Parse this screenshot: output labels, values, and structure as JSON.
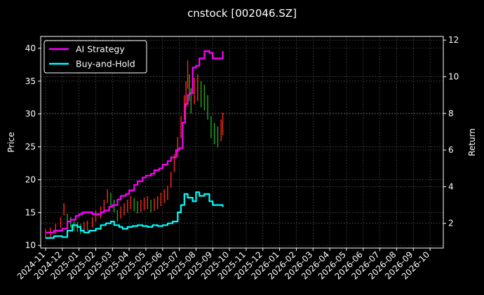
{
  "chart_data": {
    "type": "line",
    "title": "cnstock [002046.SZ]",
    "ylabel_left": "Price",
    "ylabel_right": "Return",
    "ylim_left": [
      9.6,
      41.8
    ],
    "ylim_right": [
      0.65,
      12.2
    ],
    "yticks_left": [
      10,
      15,
      20,
      25,
      30,
      35,
      40
    ],
    "yticks_right": [
      2,
      4,
      6,
      8,
      10,
      12
    ],
    "x_tick_labels": [
      "2024-11",
      "2024-12",
      "2025-01",
      "2025-02",
      "2025-03",
      "2025-04",
      "2025-05",
      "2025-06",
      "2025-07",
      "2025-08",
      "2025-09",
      "2025-10",
      "2025-11",
      "2025-12",
      "2026-01",
      "2026-02",
      "2026-03",
      "2026-04",
      "2026-05",
      "2026-06",
      "2026-07",
      "2026-08",
      "2026-09",
      "2026-10"
    ],
    "grid": true,
    "legend_position": "top-left",
    "colors": {
      "background": "#000000",
      "strategy": "#ff00ff",
      "buyhold": "#00ffff",
      "candle_up": "#ff2a1a",
      "candle_down": "#22aa22",
      "grid": "#555555"
    },
    "series": [
      {
        "name": "AI Strategy",
        "axis": "right",
        "x": [
          0,
          0.5,
          1,
          1.3,
          1.5,
          1.8,
          2,
          2.2,
          2.5,
          2.8,
          3,
          3.3,
          3.5,
          3.8,
          4,
          4.3,
          4.5,
          4.8,
          5,
          5.3,
          5.5,
          5.8,
          6,
          6.3,
          6.5,
          6.8,
          7,
          7.3,
          7.5,
          7.8,
          8,
          8.2,
          8.35,
          8.5,
          8.6,
          8.8,
          9,
          9.2,
          9.5,
          9.8,
          10,
          10.3,
          10.6
        ],
        "values": [
          1.5,
          1.6,
          1.7,
          2.1,
          2.2,
          2.4,
          2.5,
          2.6,
          2.6,
          2.5,
          2.5,
          2.6,
          2.7,
          2.9,
          3.0,
          3.3,
          3.5,
          3.6,
          3.8,
          4.1,
          4.3,
          4.5,
          4.6,
          4.7,
          4.9,
          5.0,
          5.2,
          5.4,
          5.6,
          6.0,
          6.1,
          7.5,
          8.5,
          9.0,
          9.1,
          10.5,
          10.6,
          11.0,
          11.4,
          11.3,
          11.0,
          11.0,
          11.4
        ]
      },
      {
        "name": "Buy-and-Hold",
        "axis": "right",
        "x": [
          0,
          0.5,
          1,
          1.3,
          1.6,
          1.9,
          2.1,
          2.3,
          2.6,
          3,
          3.3,
          3.6,
          3.9,
          4.1,
          4.4,
          4.6,
          4.9,
          5.2,
          5.5,
          5.8,
          6.1,
          6.4,
          6.7,
          7,
          7.3,
          7.6,
          7.9,
          8.1,
          8.3,
          8.5,
          8.8,
          9,
          9.2,
          9.5,
          9.8,
          10,
          10.3,
          10.6
        ],
        "values": [
          1.2,
          1.3,
          1.25,
          1.6,
          1.9,
          1.8,
          1.6,
          1.5,
          1.6,
          1.7,
          1.9,
          2.0,
          2.1,
          1.9,
          1.8,
          1.7,
          1.8,
          1.85,
          1.9,
          1.85,
          1.8,
          1.9,
          1.85,
          1.9,
          2.0,
          2.1,
          2.6,
          3.0,
          3.6,
          3.4,
          3.2,
          3.7,
          3.5,
          3.6,
          3.2,
          3.0,
          3.0,
          2.9
        ]
      },
      {
        "name": "Price",
        "axis": "left",
        "x": [
          0,
          0.3,
          0.6,
          0.9,
          1.1,
          1.3,
          1.5,
          1.7,
          1.9,
          2.1,
          2.3,
          2.5,
          2.8,
          3.0,
          3.3,
          3.5,
          3.7,
          3.9,
          4.1,
          4.3,
          4.5,
          4.7,
          4.9,
          5.1,
          5.3,
          5.5,
          5.7,
          5.9,
          6.1,
          6.3,
          6.5,
          6.7,
          6.9,
          7.1,
          7.3,
          7.5,
          7.7,
          7.9,
          8.1,
          8.3,
          8.4,
          8.5,
          8.6,
          8.7,
          8.9,
          9.1,
          9.3,
          9.5,
          9.7,
          9.9,
          10.1,
          10.3,
          10.5,
          10.6
        ],
        "values": [
          11.8,
          12.0,
          12.5,
          13.5,
          15.5,
          14.0,
          13.5,
          13.0,
          12.8,
          12.5,
          12.8,
          13.0,
          13.5,
          14.5,
          15.0,
          16.0,
          17.5,
          17.0,
          16.0,
          14.5,
          15.0,
          15.5,
          16.0,
          16.5,
          16.2,
          15.8,
          16.0,
          16.3,
          16.5,
          16.0,
          16.2,
          16.5,
          17.0,
          17.5,
          18.0,
          20.0,
          22.5,
          25.0,
          28.0,
          31.0,
          33.0,
          36.0,
          34.0,
          32.0,
          33.5,
          34.0,
          33.0,
          32.5,
          31.0,
          28.0,
          27.0,
          26.5,
          27.5,
          28.5
        ]
      }
    ]
  },
  "legend": {
    "strategy_label": "AI Strategy",
    "buyhold_label": "Buy-and-Hold"
  }
}
